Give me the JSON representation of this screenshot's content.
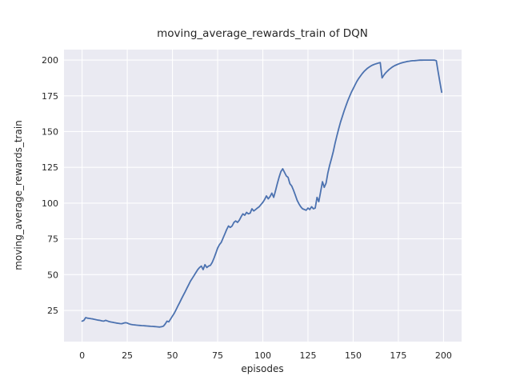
{
  "chart_data": {
    "type": "line",
    "title": "moving_average_rewards_train of DQN",
    "xlabel": "episodes",
    "ylabel": "moving_average_rewards_train",
    "x_ticks": [
      0,
      25,
      50,
      75,
      100,
      125,
      150,
      175,
      200
    ],
    "y_ticks": [
      25,
      50,
      75,
      100,
      125,
      150,
      175,
      200
    ],
    "xlim": [
      -10,
      210
    ],
    "ylim": [
      3.2,
      207.3
    ],
    "grid": true,
    "legend": "none",
    "style": {
      "plot_bg": "#EAEAF2",
      "figure_bg": "#FFFFFF",
      "grid_color": "#FFFFFF",
      "line_color": "#4C72B0",
      "text_color": "#262626",
      "line_width": 1.8
    },
    "series": [
      {
        "name": "moving_average_rewards_train",
        "color": "#4C72B0",
        "points": [
          [
            0,
            17.5
          ],
          [
            1,
            18
          ],
          [
            2,
            20
          ],
          [
            3,
            19.6
          ],
          [
            4,
            19.4
          ],
          [
            5,
            19.2
          ],
          [
            6,
            19
          ],
          [
            7,
            18.7
          ],
          [
            8,
            18.4
          ],
          [
            9,
            18.2
          ],
          [
            10,
            18
          ],
          [
            11,
            17.7
          ],
          [
            12,
            17.5
          ],
          [
            13,
            18.1
          ],
          [
            14,
            17.6
          ],
          [
            15,
            17.2
          ],
          [
            16,
            16.9
          ],
          [
            17,
            16.7
          ],
          [
            18,
            16.4
          ],
          [
            19,
            16.2
          ],
          [
            20,
            16
          ],
          [
            21,
            15.8
          ],
          [
            22,
            15.7
          ],
          [
            23,
            16.1
          ],
          [
            24,
            16.4
          ],
          [
            25,
            16.2
          ],
          [
            26,
            15.6
          ],
          [
            27,
            15.2
          ],
          [
            28,
            15
          ],
          [
            29,
            14.9
          ],
          [
            30,
            14.7
          ],
          [
            31,
            14.6
          ],
          [
            32,
            14.5
          ],
          [
            33,
            14.4
          ],
          [
            34,
            14.3
          ],
          [
            35,
            14.2
          ],
          [
            36,
            14.1
          ],
          [
            37,
            14
          ],
          [
            38,
            13.9
          ],
          [
            39,
            13.8
          ],
          [
            40,
            13.7
          ],
          [
            41,
            13.6
          ],
          [
            42,
            13.5
          ],
          [
            43,
            13.4
          ],
          [
            44,
            13.6
          ],
          [
            45,
            14
          ],
          [
            46,
            15.5
          ],
          [
            47,
            17.5
          ],
          [
            48,
            17
          ],
          [
            49,
            19
          ],
          [
            50,
            21
          ],
          [
            51,
            23
          ],
          [
            52,
            25.5
          ],
          [
            53,
            28
          ],
          [
            54,
            30.5
          ],
          [
            55,
            33
          ],
          [
            56,
            35.5
          ],
          [
            57,
            38
          ],
          [
            58,
            40.5
          ],
          [
            59,
            43
          ],
          [
            60,
            45.5
          ],
          [
            61,
            47.5
          ],
          [
            62,
            49.5
          ],
          [
            63,
            51.5
          ],
          [
            64,
            53.5
          ],
          [
            65,
            55
          ],
          [
            66,
            56
          ],
          [
            67,
            53.5
          ],
          [
            68,
            57
          ],
          [
            69,
            55
          ],
          [
            70,
            56
          ],
          [
            71,
            56.5
          ],
          [
            72,
            58.5
          ],
          [
            73,
            61.5
          ],
          [
            74,
            65
          ],
          [
            75,
            68.5
          ],
          [
            76,
            71
          ],
          [
            77,
            72.5
          ],
          [
            78,
            75.5
          ],
          [
            79,
            78.5
          ],
          [
            80,
            81.5
          ],
          [
            81,
            84
          ],
          [
            82,
            83
          ],
          [
            83,
            84
          ],
          [
            84,
            86.5
          ],
          [
            85,
            87.5
          ],
          [
            86,
            86.5
          ],
          [
            87,
            88
          ],
          [
            88,
            90.5
          ],
          [
            89,
            92.5
          ],
          [
            90,
            91.5
          ],
          [
            91,
            93.5
          ],
          [
            92,
            92.5
          ],
          [
            93,
            93
          ],
          [
            94,
            96
          ],
          [
            95,
            94.5
          ],
          [
            96,
            95.5
          ],
          [
            97,
            96.5
          ],
          [
            98,
            97.5
          ],
          [
            99,
            99
          ],
          [
            100,
            100.5
          ],
          [
            101,
            102.5
          ],
          [
            102,
            105
          ],
          [
            103,
            103
          ],
          [
            104,
            104.5
          ],
          [
            105,
            107
          ],
          [
            106,
            104
          ],
          [
            107,
            108.5
          ],
          [
            108,
            113.5
          ],
          [
            109,
            118
          ],
          [
            110,
            122
          ],
          [
            111,
            124
          ],
          [
            112,
            121.5
          ],
          [
            113,
            119
          ],
          [
            114,
            118
          ],
          [
            115,
            113.5
          ],
          [
            116,
            112
          ],
          [
            117,
            109
          ],
          [
            118,
            105.5
          ],
          [
            119,
            102
          ],
          [
            120,
            99.5
          ],
          [
            121,
            97.5
          ],
          [
            122,
            96
          ],
          [
            123,
            95.5
          ],
          [
            124,
            95
          ],
          [
            125,
            96.5
          ],
          [
            126,
            95.5
          ],
          [
            127,
            97.5
          ],
          [
            128,
            96
          ],
          [
            129,
            96.5
          ],
          [
            130,
            104
          ],
          [
            131,
            101
          ],
          [
            132,
            108
          ],
          [
            133,
            115
          ],
          [
            134,
            111
          ],
          [
            135,
            114
          ],
          [
            136,
            121
          ],
          [
            137,
            126.5
          ],
          [
            138,
            131
          ],
          [
            139,
            136
          ],
          [
            140,
            142
          ],
          [
            141,
            147
          ],
          [
            142,
            152
          ],
          [
            143,
            156.5
          ],
          [
            144,
            160.5
          ],
          [
            145,
            164.5
          ],
          [
            146,
            168
          ],
          [
            147,
            171.5
          ],
          [
            148,
            174.5
          ],
          [
            149,
            177.5
          ],
          [
            150,
            180
          ],
          [
            151,
            182.5
          ],
          [
            152,
            185
          ],
          [
            153,
            187
          ],
          [
            154,
            188.8
          ],
          [
            155,
            190.5
          ],
          [
            156,
            192
          ],
          [
            157,
            193.2
          ],
          [
            158,
            194.3
          ],
          [
            159,
            195.2
          ],
          [
            160,
            196
          ],
          [
            161,
            196.6
          ],
          [
            162,
            197.1
          ],
          [
            163,
            197.5
          ],
          [
            164,
            197.9
          ],
          [
            165,
            198.2
          ],
          [
            166,
            187.5
          ],
          [
            167,
            189.5
          ],
          [
            168,
            191
          ],
          [
            169,
            192.3
          ],
          [
            170,
            193.5
          ],
          [
            171,
            194.5
          ],
          [
            172,
            195.4
          ],
          [
            173,
            196.1
          ],
          [
            174,
            196.7
          ],
          [
            175,
            197.2
          ],
          [
            176,
            197.7
          ],
          [
            177,
            198.1
          ],
          [
            178,
            198.4
          ],
          [
            179,
            198.7
          ],
          [
            180,
            199
          ],
          [
            181,
            199.2
          ],
          [
            182,
            199.4
          ],
          [
            183,
            199.5
          ],
          [
            184,
            199.6
          ],
          [
            185,
            199.7
          ],
          [
            186,
            199.8
          ],
          [
            187,
            199.9
          ],
          [
            188,
            199.9
          ],
          [
            189,
            200
          ],
          [
            190,
            200
          ],
          [
            191,
            200
          ],
          [
            192,
            200
          ],
          [
            193,
            200
          ],
          [
            194,
            200
          ],
          [
            195,
            199.9
          ],
          [
            196,
            199.5
          ],
          [
            197,
            192
          ],
          [
            198,
            184.5
          ],
          [
            199,
            177.5
          ]
        ]
      }
    ]
  }
}
